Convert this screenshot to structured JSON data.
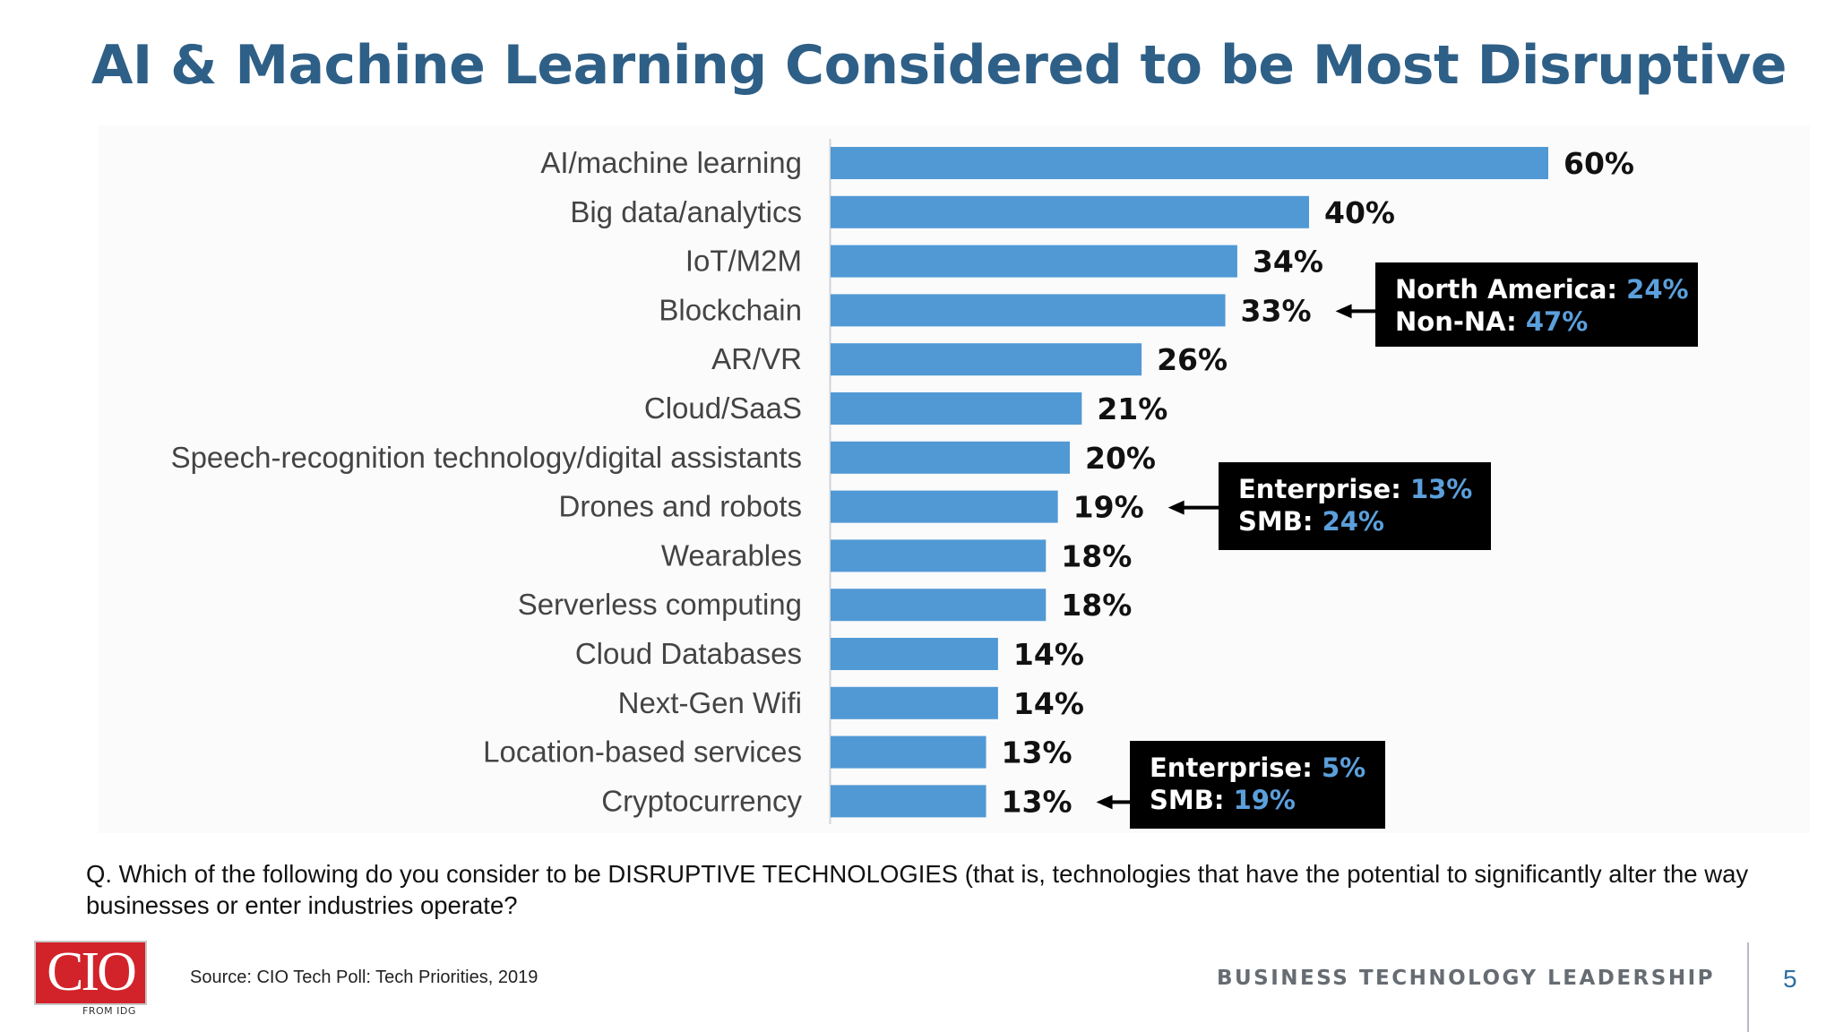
{
  "title": "AI & Machine Learning Considered to be Most Disruptive",
  "chart_data": {
    "type": "bar",
    "orientation": "horizontal",
    "categories": [
      "AI/machine learning",
      "Big data/analytics",
      "IoT/M2M",
      "Blockchain",
      "AR/VR",
      "Cloud/SaaS",
      "Speech-recognition technology/digital assistants",
      "Drones and robots",
      "Wearables",
      "Serverless computing",
      "Cloud Databases",
      "Next-Gen Wifi",
      "Location-based services",
      "Cryptocurrency"
    ],
    "values": [
      60,
      40,
      34,
      33,
      26,
      21,
      20,
      19,
      18,
      18,
      14,
      14,
      13,
      13
    ],
    "value_labels": [
      "60%",
      "40%",
      "34%",
      "33%",
      "26%",
      "21%",
      "20%",
      "19%",
      "18%",
      "18%",
      "14%",
      "14%",
      "13%",
      "13%"
    ],
    "bar_color": "#5199d4",
    "xlim": [
      0,
      60
    ],
    "grid": false,
    "legend": "none",
    "annotations": [
      {
        "target": "Blockchain",
        "lines": [
          {
            "label": "North America:",
            "value": "24%"
          },
          {
            "label": "Non-NA:",
            "value": "47%"
          }
        ]
      },
      {
        "target": "Drones and robots",
        "lines": [
          {
            "label": "Enterprise:",
            "value": "13%"
          },
          {
            "label": "SMB:",
            "value": "24%"
          }
        ]
      },
      {
        "target": "Cryptocurrency",
        "lines": [
          {
            "label": "Enterprise:",
            "value": "5%"
          },
          {
            "label": "SMB:",
            "value": "19%"
          }
        ]
      }
    ]
  },
  "question": "Q. Which of the following do you consider to be DISRUPTIVE TECHNOLOGIES (that is, technologies that have the potential to significantly alter the way businesses or enter industries operate?",
  "footer": {
    "logo_text": "CIO",
    "logo_sub": "FROM IDG",
    "source": "Source: CIO Tech Poll: Tech Priorities, 2019",
    "brand": "BUSINESS TECHNOLOGY LEADERSHIP",
    "page_number": "5"
  },
  "colors": {
    "title": "#2e5f87",
    "bar": "#5199d4",
    "callout_bg": "#000000",
    "callout_value": "#5b9fdb",
    "logo_red": "#d2232a"
  }
}
